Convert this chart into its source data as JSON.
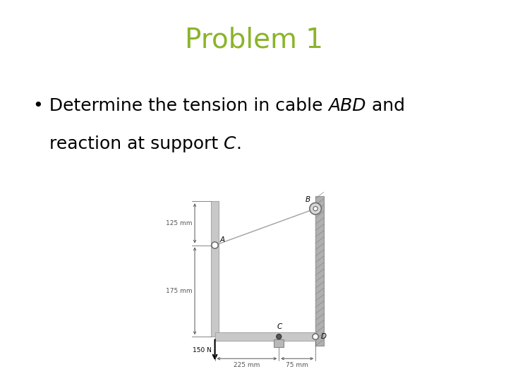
{
  "title": "Problem 1",
  "title_color": "#8ab42a",
  "title_fontsize": 28,
  "text_fontsize": 18,
  "bg_color": "#ffffff",
  "member_color": "#c8c8c8",
  "member_edge": "#a8a8a8",
  "wall_color": "#b0b0b0",
  "wall_edge": "#909090",
  "cable_color": "#a0a0a0",
  "dim_color": "#555555",
  "note_125": "125 mm",
  "note_175": "175 mm",
  "note_225": "225 mm",
  "note_75": "75 mm",
  "note_150N": "150 N",
  "label_A": "A",
  "label_B": "B",
  "label_C": "C",
  "label_D": "D",
  "label_fontsize": 7.5
}
